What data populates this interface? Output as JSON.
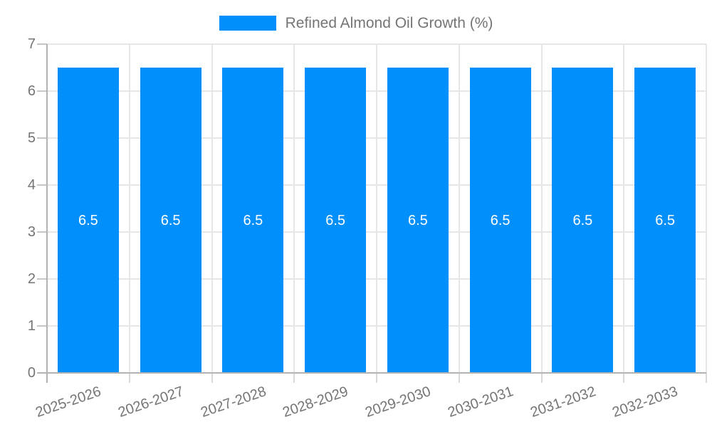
{
  "chart_data": {
    "type": "bar",
    "title": "",
    "legend": {
      "label": "Refined Almond Oil Growth (%)",
      "position": "top"
    },
    "categories": [
      "2025-2026",
      "2026-2027",
      "2027-2028",
      "2028-2029",
      "2029-2030",
      "2030-2031",
      "2031-2032",
      "2032-2033"
    ],
    "series": [
      {
        "name": "Refined Almond Oil Growth (%)",
        "values": [
          6.5,
          6.5,
          6.5,
          6.5,
          6.5,
          6.5,
          6.5,
          6.5
        ],
        "value_labels": [
          "6.5",
          "6.5",
          "6.5",
          "6.5",
          "6.5",
          "6.5",
          "6.5",
          "6.5"
        ]
      }
    ],
    "xlabel": "",
    "ylabel": "",
    "ylim": [
      0,
      7
    ],
    "yticks": [
      0,
      1,
      2,
      3,
      4,
      5,
      6,
      7
    ],
    "ytick_labels": [
      "0",
      "1",
      "2",
      "3",
      "4",
      "5",
      "6",
      "7"
    ],
    "grid": true,
    "x_label_rotation_deg": -19,
    "colors": {
      "bar": "#008FFB",
      "bar_label": "#FFFFFF",
      "axis_text": "#757575",
      "legend_text": "#757575",
      "grid_line": "#E6E6E6",
      "axis_line": "#B3B3B3",
      "y_tick": "#C6C6C6",
      "x_tick": "#D9D9D9",
      "background": "#FFFFFF"
    }
  }
}
